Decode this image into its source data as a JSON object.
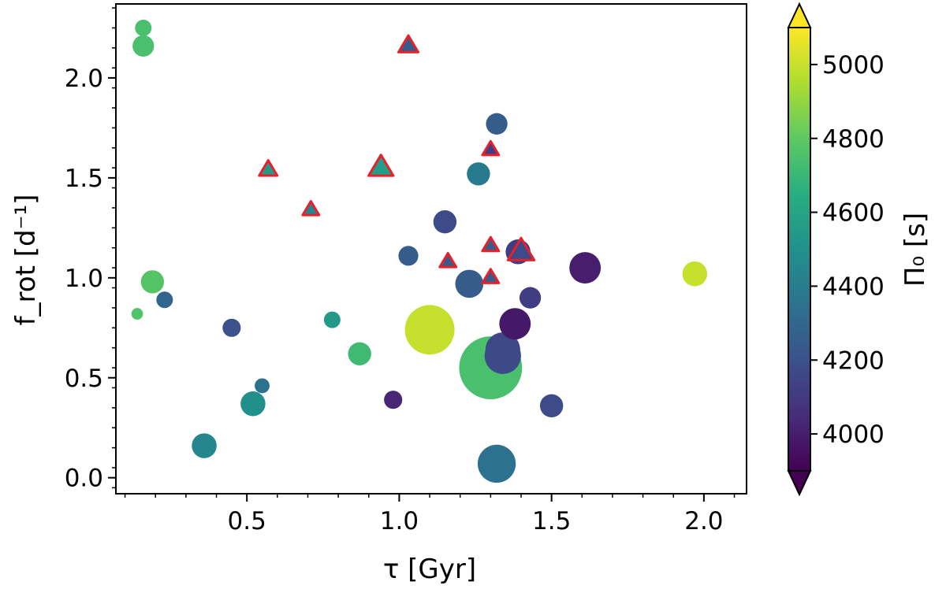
{
  "chart_data": {
    "type": "scatter",
    "xlabel": "τ [Gyr]",
    "ylabel": "f_rot [d⁻¹]",
    "colorbar_label": "Π₀ [s]",
    "xlim": [
      0.07,
      2.14
    ],
    "ylim": [
      -0.08,
      2.37
    ],
    "xticks": [
      0.5,
      1.0,
      1.5,
      2.0
    ],
    "xtick_labels": [
      "0.5",
      "1.0",
      "1.5",
      "2.0"
    ],
    "yticks": [
      0.0,
      0.5,
      1.0,
      1.5,
      2.0
    ],
    "ytick_labels": [
      "0.0",
      "0.5",
      "1.0",
      "1.5",
      "2.0"
    ],
    "colorbar": {
      "range": [
        3900,
        5100
      ],
      "ticks": [
        4000,
        4200,
        4400,
        4600,
        4800,
        5000
      ],
      "tick_labels": [
        "4000",
        "4200",
        "4400",
        "4600",
        "4800",
        "5000"
      ],
      "extend": "both",
      "colormap": "viridis"
    },
    "grid": false,
    "marker_colors": {
      "triangle_edge": "#e8202a"
    },
    "series": [
      {
        "marker": "circle",
        "points": [
          {
            "x": 0.16,
            "y": 2.25,
            "c": 4750,
            "s": 1.0
          },
          {
            "x": 0.16,
            "y": 2.16,
            "c": 4750,
            "s": 1.3
          },
          {
            "x": 0.19,
            "y": 0.98,
            "c": 4780,
            "s": 1.4
          },
          {
            "x": 0.14,
            "y": 0.82,
            "c": 4770,
            "s": 0.7
          },
          {
            "x": 0.23,
            "y": 0.89,
            "c": 4300,
            "s": 1.0
          },
          {
            "x": 0.36,
            "y": 0.16,
            "c": 4450,
            "s": 1.5
          },
          {
            "x": 0.45,
            "y": 0.75,
            "c": 4200,
            "s": 1.1
          },
          {
            "x": 0.52,
            "y": 0.37,
            "c": 4500,
            "s": 1.5
          },
          {
            "x": 0.55,
            "y": 0.46,
            "c": 4350,
            "s": 0.9
          },
          {
            "x": 0.78,
            "y": 0.79,
            "c": 4550,
            "s": 1.0
          },
          {
            "x": 0.87,
            "y": 0.62,
            "c": 4720,
            "s": 1.4
          },
          {
            "x": 0.98,
            "y": 0.39,
            "c": 4030,
            "s": 1.1
          },
          {
            "x": 1.03,
            "y": 1.11,
            "c": 4250,
            "s": 1.2
          },
          {
            "x": 1.1,
            "y": 0.74,
            "c": 5000,
            "s": 3.0
          },
          {
            "x": 1.15,
            "y": 1.28,
            "c": 4180,
            "s": 1.4
          },
          {
            "x": 1.23,
            "y": 0.97,
            "c": 4250,
            "s": 1.7
          },
          {
            "x": 1.26,
            "y": 1.52,
            "c": 4400,
            "s": 1.4
          },
          {
            "x": 1.3,
            "y": 0.55,
            "c": 4750,
            "s": 3.8
          },
          {
            "x": 1.32,
            "y": 1.77,
            "c": 4250,
            "s": 1.3
          },
          {
            "x": 1.32,
            "y": 0.07,
            "c": 4350,
            "s": 2.3
          },
          {
            "x": 1.34,
            "y": 0.64,
            "c": 4150,
            "s": 2.1
          },
          {
            "x": 1.34,
            "y": 0.61,
            "c": 4170,
            "s": 2.2
          },
          {
            "x": 1.38,
            "y": 0.77,
            "c": 3980,
            "s": 1.9
          },
          {
            "x": 1.39,
            "y": 1.13,
            "c": 4120,
            "s": 1.5
          },
          {
            "x": 1.43,
            "y": 0.9,
            "c": 4120,
            "s": 1.3
          },
          {
            "x": 1.5,
            "y": 0.36,
            "c": 4180,
            "s": 1.4
          },
          {
            "x": 1.61,
            "y": 1.05,
            "c": 4000,
            "s": 1.9
          },
          {
            "x": 1.97,
            "y": 1.02,
            "c": 5000,
            "s": 1.5
          }
        ]
      },
      {
        "marker": "triangle",
        "points": [
          {
            "x": 0.57,
            "y": 1.54,
            "c": 4550,
            "s": 1.1
          },
          {
            "x": 0.71,
            "y": 1.34,
            "c": 4450,
            "s": 1.0
          },
          {
            "x": 0.94,
            "y": 1.55,
            "c": 4580,
            "s": 1.5
          },
          {
            "x": 1.03,
            "y": 2.16,
            "c": 4250,
            "s": 1.2
          },
          {
            "x": 1.16,
            "y": 1.08,
            "c": 4250,
            "s": 1.0
          },
          {
            "x": 1.3,
            "y": 1.64,
            "c": 4120,
            "s": 1.0
          },
          {
            "x": 1.3,
            "y": 1.16,
            "c": 4250,
            "s": 1.0
          },
          {
            "x": 1.3,
            "y": 1.0,
            "c": 4250,
            "s": 1.0
          },
          {
            "x": 1.4,
            "y": 1.13,
            "c": 4180,
            "s": 1.6
          }
        ]
      }
    ]
  }
}
